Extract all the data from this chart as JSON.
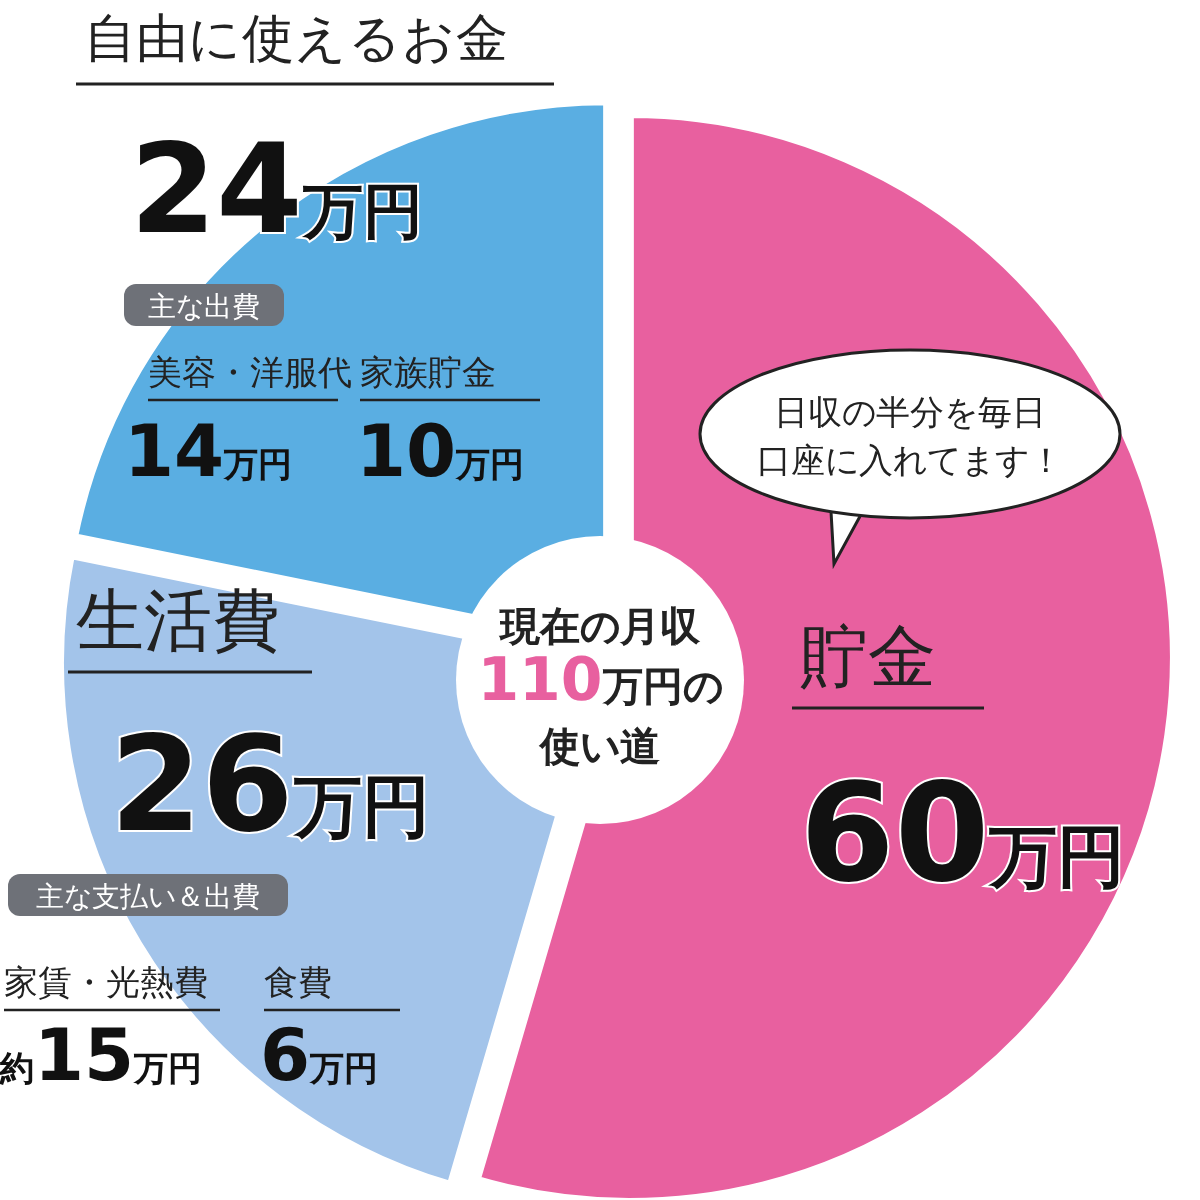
{
  "chart_data": {
    "type": "pie",
    "title": "現在の月収110万円の使い道",
    "categories": [
      "貯金",
      "生活費",
      "自由に使えるお金"
    ],
    "values": [
      60,
      26,
      24
    ],
    "colors": [
      "#e8609f",
      "#a3c4ea",
      "#5aaee2"
    ],
    "value_labels": [
      "60万円",
      "26万円",
      "24万円"
    ],
    "annotations": [
      "日収の半分を毎日口座に入れてます！",
      "主な出費",
      "美容・洋服代",
      "14万円",
      "家族貯金",
      "10万円",
      "主な支払い＆出費",
      "家賃・光熱費",
      "約15万円",
      "食費",
      "6万円"
    ]
  }
}
